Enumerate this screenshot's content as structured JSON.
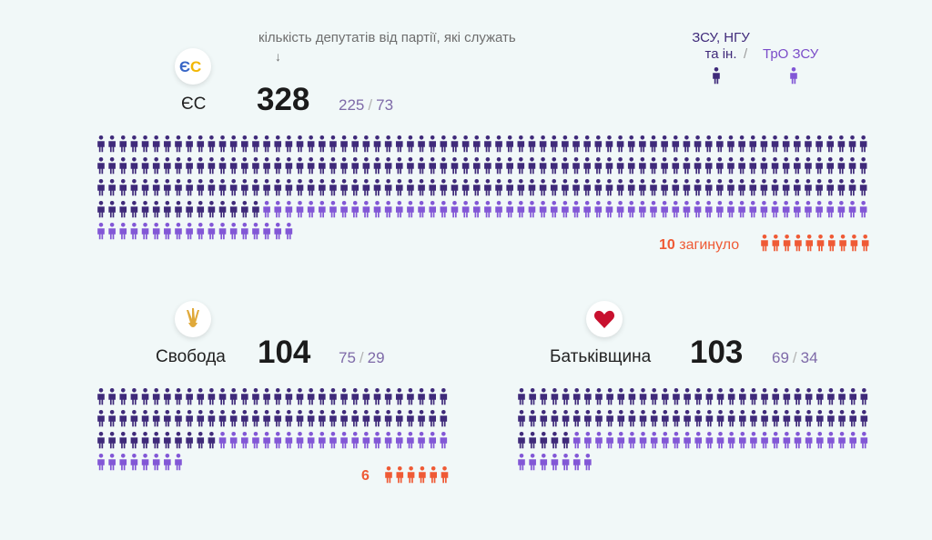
{
  "header": {
    "caption": "кількість депутатів від партії, які служать",
    "caption_arrow": "↓"
  },
  "legend": {
    "dark_label_line1": "ЗСУ, НГУ",
    "dark_label_line2": "та ін.",
    "separator": "/",
    "light_label": "ТрО ЗСУ"
  },
  "colors": {
    "dark": "#3f2a7a",
    "light": "#8257d6",
    "killed": "#ef5a35"
  },
  "chart_data": [
    {
      "type": "pictogram",
      "party": "ЄС",
      "logo_text": "ЄС",
      "total": 328,
      "series": [
        {
          "name": "ЗСУ, НГУ та ін.",
          "value": 225
        },
        {
          "name": "ТрО ЗСУ",
          "value": 73
        }
      ],
      "killed": 10,
      "killed_label": "загинуло",
      "total_label": "328",
      "dark_label": "225",
      "light_label": "73",
      "killed_number_label": "10"
    },
    {
      "type": "pictogram",
      "party": "Свобода",
      "total": 104,
      "series": [
        {
          "name": "ЗСУ, НГУ та ін.",
          "value": 75
        },
        {
          "name": "ТрО ЗСУ",
          "value": 29
        }
      ],
      "killed": 6,
      "killed_label": "",
      "total_label": "104",
      "dark_label": "75",
      "light_label": "29",
      "killed_number_label": "6"
    },
    {
      "type": "pictogram",
      "party": "Батьківщина",
      "total": 103,
      "series": [
        {
          "name": "ЗСУ, НГУ та ін.",
          "value": 69
        },
        {
          "name": "ТрО ЗСУ",
          "value": 34
        }
      ],
      "killed": 0,
      "killed_label": "",
      "total_label": "103",
      "dark_label": "69",
      "light_label": "34",
      "killed_number_label": ""
    }
  ]
}
